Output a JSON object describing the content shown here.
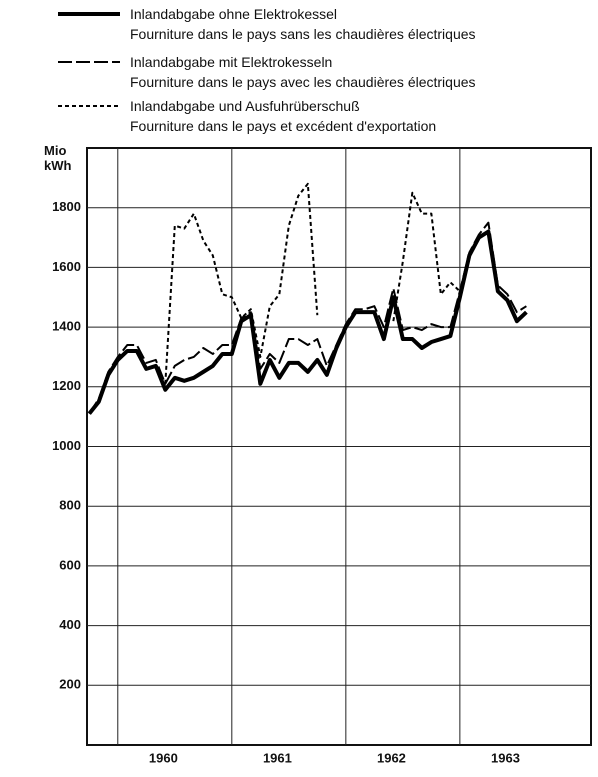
{
  "chart_data": {
    "type": "line",
    "y_label": "Mio\nkWh",
    "x": [
      1959.75,
      1959.8333,
      1959.9167,
      1960.0,
      1960.0833,
      1960.1667,
      1960.25,
      1960.3333,
      1960.4167,
      1960.5,
      1960.5833,
      1960.6667,
      1960.75,
      1960.8333,
      1960.9167,
      1961.0,
      1961.0833,
      1961.1667,
      1961.25,
      1961.3333,
      1961.4167,
      1961.5,
      1961.5833,
      1961.6667,
      1961.75,
      1961.8333,
      1961.9167,
      1962.0,
      1962.0833,
      1962.1667,
      1962.25,
      1962.3333,
      1962.4167,
      1962.5,
      1962.5833,
      1962.6667,
      1962.75,
      1962.8333,
      1962.9167,
      1963.0,
      1963.0833,
      1963.1667,
      1963.25,
      1963.3333,
      1963.4167,
      1963.5,
      1963.5833
    ],
    "series": [
      {
        "name": "Inlandabgabe ohne Elektrokessel\nFourniture dans le pays sans les chaudières électriques",
        "color": "#000",
        "style": "thick",
        "values": [
          1110,
          1150,
          1240,
          1290,
          1320,
          1320,
          1260,
          1270,
          1190,
          1230,
          1220,
          1230,
          1250,
          1270,
          1310,
          1310,
          1420,
          1440,
          1210,
          1290,
          1230,
          1280,
          1280,
          1250,
          1290,
          1240,
          1330,
          1400,
          1450,
          1450,
          1450,
          1360,
          1500,
          1360,
          1360,
          1330,
          1350,
          1360,
          1370,
          1500,
          1640,
          1700,
          1720,
          1520,
          1490,
          1420,
          1450
        ]
      },
      {
        "name": "Inlandabgabe mit Elektrokesseln\nFourniture dans le pays avec les chaudières électriques",
        "color": "#000",
        "style": "longdash",
        "values": [
          1110,
          1160,
          1250,
          1300,
          1340,
          1340,
          1280,
          1290,
          1210,
          1270,
          1290,
          1300,
          1330,
          1310,
          1340,
          1340,
          1430,
          1450,
          1260,
          1310,
          1280,
          1360,
          1360,
          1340,
          1360,
          1270,
          1340,
          1410,
          1460,
          1460,
          1470,
          1400,
          1530,
          1390,
          1400,
          1390,
          1410,
          1400,
          1400,
          1520,
          1650,
          1710,
          1750,
          1540,
          1510,
          1450,
          1470
        ]
      },
      {
        "name": "Inlandabgabe und Ausfuhrüberschuß\nFourniture dans le pays et excédent d'exportation",
        "color": "#000",
        "style": "shortdash",
        "values": [
          null,
          null,
          null,
          null,
          null,
          null,
          null,
          null,
          1210,
          1740,
          1730,
          1780,
          1690,
          1640,
          1510,
          1500,
          1430,
          1460,
          1300,
          1470,
          1510,
          1740,
          1840,
          1880,
          1440,
          null,
          null,
          null,
          null,
          null,
          null,
          null,
          1420,
          1620,
          1850,
          1780,
          1780,
          1510,
          1550,
          1520,
          null,
          null,
          null,
          null,
          null,
          null,
          null
        ]
      }
    ],
    "xlim": [
      1959.73,
      1964.15
    ],
    "xticks": [
      1960,
      1961,
      1962,
      1963
    ],
    "ylim": [
      0,
      2000
    ],
    "yticks": [
      200,
      400,
      600,
      800,
      1000,
      1200,
      1400,
      1600,
      1800
    ],
    "grid": true
  }
}
